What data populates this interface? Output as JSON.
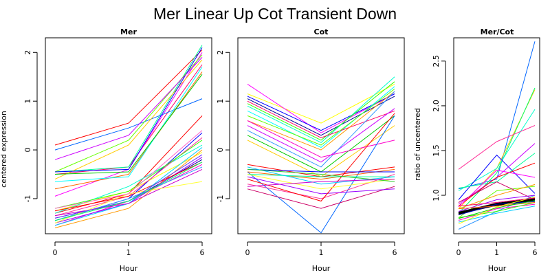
{
  "title": "Mer Linear Up Cot Transient Down",
  "chart_data": [
    {
      "type": "line",
      "title": "Mer",
      "xlabel": "Hour",
      "ylabel": "centered expression",
      "x": [
        "0",
        "1",
        "6"
      ],
      "xticks": [
        "0",
        "1",
        "6"
      ],
      "yticks": [
        -1,
        0,
        1,
        2
      ],
      "ylim": [
        -1.72,
        2.3
      ],
      "grid": false,
      "series": [
        {
          "color": "#ff0000",
          "values": [
            0.1,
            0.55,
            2.05
          ]
        },
        {
          "color": "#ff0066",
          "values": [
            -0.5,
            -0.35,
            1.75
          ]
        },
        {
          "color": "#ff00ff",
          "values": [
            -0.95,
            -0.4,
            2.0
          ]
        },
        {
          "color": "#00ff99",
          "values": [
            -0.45,
            -0.35,
            2.15
          ]
        },
        {
          "color": "#0066ff",
          "values": [
            0.0,
            0.45,
            1.05
          ]
        },
        {
          "color": "#66ff00",
          "values": [
            -0.45,
            0.2,
            1.95
          ]
        },
        {
          "color": "#ffcc00",
          "values": [
            -0.6,
            0.1,
            1.85
          ]
        },
        {
          "color": "#0000ff",
          "values": [
            -0.45,
            -0.4,
            2.1
          ]
        },
        {
          "color": "#ff6600",
          "values": [
            -0.8,
            -0.5,
            1.6
          ]
        },
        {
          "color": "#cc00ff",
          "values": [
            -0.2,
            0.3,
            1.9
          ]
        },
        {
          "color": "#00ffff",
          "values": [
            -0.65,
            -0.55,
            1.7
          ]
        },
        {
          "color": "#00cc00",
          "values": [
            -0.5,
            -0.45,
            1.55
          ]
        },
        {
          "color": "#ff0000",
          "values": [
            -1.3,
            -0.9,
            0.7
          ]
        },
        {
          "color": "#ff00cc",
          "values": [
            -1.55,
            -1.05,
            -0.3
          ]
        },
        {
          "color": "#0000ff",
          "values": [
            -1.45,
            -1.0,
            0.35
          ]
        },
        {
          "color": "#000099",
          "values": [
            -1.4,
            -1.05,
            -0.2
          ]
        },
        {
          "color": "#ffff00",
          "values": [
            -1.25,
            -0.85,
            -0.05
          ]
        },
        {
          "color": "#ff9900",
          "values": [
            -1.6,
            -1.2,
            0.0
          ]
        },
        {
          "color": "#00ffcc",
          "values": [
            -1.3,
            -0.75,
            0.1
          ]
        },
        {
          "color": "#3399ff",
          "values": [
            -1.45,
            -1.0,
            -0.35
          ]
        },
        {
          "color": "#ff3399",
          "values": [
            -1.35,
            -0.95,
            0.25
          ]
        },
        {
          "color": "#33ff00",
          "values": [
            -1.2,
            -0.85,
            0.2
          ]
        },
        {
          "color": "#9900ff",
          "values": [
            -1.5,
            -1.1,
            -0.15
          ]
        },
        {
          "color": "#ff0000",
          "values": [
            -1.25,
            -0.95,
            -0.25
          ]
        },
        {
          "color": "#00ccff",
          "values": [
            -1.55,
            -1.1,
            0.05
          ]
        },
        {
          "color": "#cc00cc",
          "values": [
            -1.35,
            -1.1,
            -0.4
          ]
        },
        {
          "color": "#ffff33",
          "values": [
            -1.5,
            -0.9,
            -0.65
          ]
        },
        {
          "color": "#ff66cc",
          "values": [
            -1.2,
            -0.9,
            0.4
          ]
        },
        {
          "color": "#6633ff",
          "values": [
            -1.4,
            -1.05,
            -0.1
          ]
        },
        {
          "color": "#00ff66",
          "values": [
            -1.45,
            -1.05,
            -0.25
          ]
        }
      ]
    },
    {
      "type": "line",
      "title": "Cot",
      "xlabel": "Hour",
      "ylabel": "",
      "x": [
        "0",
        "1",
        "6"
      ],
      "xticks": [
        "0",
        "1",
        "6"
      ],
      "yticks": [
        -1,
        0,
        1,
        2
      ],
      "ylim": [
        -1.72,
        2.3
      ],
      "grid": false,
      "series": [
        {
          "color": "#ffff00",
          "values": [
            1.15,
            0.55,
            1.35
          ]
        },
        {
          "color": "#ff00ff",
          "values": [
            1.35,
            0.35,
            1.15
          ]
        },
        {
          "color": "#0000ff",
          "values": [
            1.1,
            0.4,
            1.15
          ]
        },
        {
          "color": "#000099",
          "values": [
            1.05,
            0.3,
            1.1
          ]
        },
        {
          "color": "#00ffcc",
          "values": [
            0.9,
            0.15,
            1.5
          ]
        },
        {
          "color": "#33ff00",
          "values": [
            0.95,
            0.2,
            1.4
          ]
        },
        {
          "color": "#00ffff",
          "values": [
            0.8,
            0.05,
            1.3
          ]
        },
        {
          "color": "#ff0066",
          "values": [
            1.0,
            0.25,
            0.8
          ]
        },
        {
          "color": "#66ff00",
          "values": [
            0.7,
            0.1,
            1.25
          ]
        },
        {
          "color": "#ff9900",
          "values": [
            0.6,
            0.0,
            1.2
          ]
        },
        {
          "color": "#cc00ff",
          "values": [
            0.5,
            -0.25,
            0.85
          ]
        },
        {
          "color": "#3399ff",
          "values": [
            0.4,
            -0.35,
            1.2
          ]
        },
        {
          "color": "#00cc00",
          "values": [
            0.3,
            -0.45,
            0.7
          ]
        },
        {
          "color": "#ffcc00",
          "values": [
            0.2,
            -0.55,
            0.5
          ]
        },
        {
          "color": "#ff00cc",
          "values": [
            0.6,
            -0.15,
            0.2
          ]
        },
        {
          "color": "#0066ff",
          "values": [
            -0.45,
            -1.7,
            0.7
          ]
        },
        {
          "color": "#ff0000",
          "values": [
            -0.3,
            -0.55,
            -0.35
          ]
        },
        {
          "color": "#ff6600",
          "values": [
            -0.45,
            -0.6,
            -0.4
          ]
        },
        {
          "color": "#0000ff",
          "values": [
            -0.4,
            -0.45,
            -0.45
          ]
        },
        {
          "color": "#00ff99",
          "values": [
            -0.5,
            -0.55,
            -0.55
          ]
        },
        {
          "color": "#ff3399",
          "values": [
            -0.7,
            -1.0,
            -0.5
          ]
        },
        {
          "color": "#cc0066",
          "values": [
            -0.8,
            -1.2,
            -0.75
          ]
        },
        {
          "color": "#9900ff",
          "values": [
            -0.55,
            -0.9,
            -0.8
          ]
        },
        {
          "color": "#ff0000",
          "values": [
            -0.6,
            -1.05,
            0.75
          ]
        },
        {
          "color": "#00ccff",
          "values": [
            -0.35,
            -0.7,
            -0.55
          ]
        },
        {
          "color": "#ffff33",
          "values": [
            -0.5,
            -0.8,
            -0.6
          ]
        },
        {
          "color": "#33cc33",
          "values": [
            -0.4,
            -0.5,
            -0.65
          ]
        },
        {
          "color": "#cc00cc",
          "values": [
            -0.75,
            -0.65,
            -0.6
          ]
        }
      ]
    },
    {
      "type": "line",
      "title": "Mer/Cot",
      "xlabel": "Hour",
      "ylabel": "ratio of uncentered",
      "x": [
        "0",
        "1",
        "6"
      ],
      "xticks": [
        "0",
        "1",
        "6"
      ],
      "yticks": [
        "1.0",
        "1.5",
        "2.0",
        "2.5"
      ],
      "ylim": [
        0.57,
        2.76
      ],
      "grid": false,
      "series": [
        {
          "color": "#0066ff",
          "values": [
            1.07,
            1.18,
            2.72
          ]
        },
        {
          "color": "#ffcc00",
          "values": [
            0.85,
            1.3,
            2.18
          ]
        },
        {
          "color": "#00ff66",
          "values": [
            0.8,
            1.25,
            2.2
          ]
        },
        {
          "color": "#00ffcc",
          "values": [
            1.05,
            1.3,
            1.96
          ]
        },
        {
          "color": "#ff3399",
          "values": [
            1.29,
            1.6,
            1.78
          ]
        },
        {
          "color": "#0000ff",
          "values": [
            0.95,
            1.45,
            1.02
          ]
        },
        {
          "color": "#cc00ff",
          "values": [
            0.9,
            1.2,
            1.58
          ]
        },
        {
          "color": "#00ff99",
          "values": [
            1.08,
            1.15,
            1.47
          ]
        },
        {
          "color": "#ff0000",
          "values": [
            0.88,
            1.2,
            1.36
          ]
        },
        {
          "color": "#ff00ff",
          "values": [
            0.87,
            1.28,
            1.2
          ]
        },
        {
          "color": "#66ff00",
          "values": [
            0.75,
            1.05,
            1.1
          ]
        },
        {
          "color": "#ff9900",
          "values": [
            0.85,
            1.0,
            1.12
          ]
        },
        {
          "color": "#3399ff",
          "values": [
            0.62,
            0.82,
            1.0
          ]
        },
        {
          "color": "#cc0066",
          "values": [
            0.92,
            1.15,
            0.95
          ]
        },
        {
          "color": "#000000",
          "values": [
            0.8,
            0.9,
            0.95
          ]
        },
        {
          "color": "#000000",
          "values": [
            0.79,
            0.89,
            0.94
          ]
        },
        {
          "color": "#000000",
          "values": [
            0.81,
            0.91,
            0.96
          ]
        },
        {
          "color": "#0000cc",
          "values": [
            0.78,
            0.9,
            0.93
          ]
        },
        {
          "color": "#ff00cc",
          "values": [
            0.72,
            0.85,
            0.9
          ]
        },
        {
          "color": "#00ccff",
          "values": [
            0.7,
            0.8,
            0.88
          ]
        },
        {
          "color": "#33ff00",
          "values": [
            0.75,
            0.82,
            0.92
          ]
        },
        {
          "color": "#ffff00",
          "values": [
            0.68,
            0.87,
            0.98
          ]
        },
        {
          "color": "#9900ff",
          "values": [
            0.82,
            0.95,
            1.0
          ]
        },
        {
          "color": "#ff6600",
          "values": [
            0.85,
            0.88,
            0.92
          ]
        },
        {
          "color": "#00cc00",
          "values": [
            0.74,
            0.86,
            0.94
          ]
        },
        {
          "color": "#ff0066",
          "values": [
            0.88,
            0.92,
            0.97
          ]
        }
      ]
    }
  ]
}
